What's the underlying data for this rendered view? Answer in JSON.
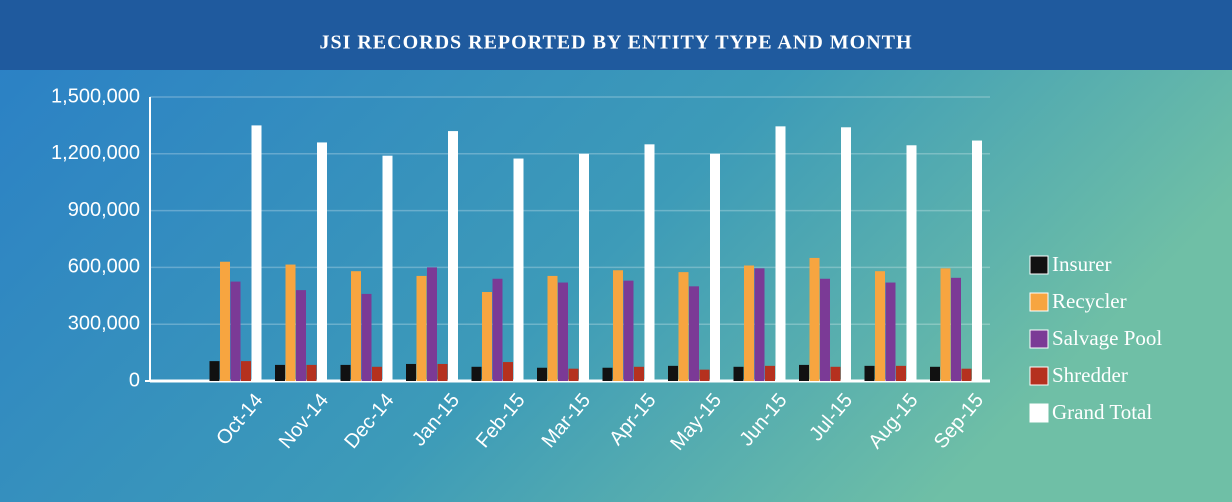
{
  "chart_data": {
    "type": "bar",
    "title": "JSI RECORDS REPORTED BY ENTITY TYPE AND MONTH",
    "categories": [
      "Oct-14",
      "Nov-14",
      "Dec-14",
      "Jan-15",
      "Feb-15",
      "Mar-15",
      "Apr-15",
      "May-15",
      "Jun-15",
      "Jul-15",
      "Aug-15",
      "Sep-15"
    ],
    "series": [
      {
        "name": "Insurer",
        "color": "#111111",
        "values": [
          105000,
          85000,
          85000,
          90000,
          75000,
          70000,
          70000,
          80000,
          75000,
          85000,
          80000,
          75000
        ]
      },
      {
        "name": "Recycler",
        "color": "#f7a540",
        "values": [
          630000,
          615000,
          580000,
          555000,
          470000,
          555000,
          585000,
          575000,
          610000,
          650000,
          580000,
          595000
        ]
      },
      {
        "name": "Salvage Pool",
        "color": "#7b3a96",
        "values": [
          525000,
          480000,
          460000,
          600000,
          540000,
          520000,
          530000,
          500000,
          595000,
          540000,
          520000,
          545000
        ]
      },
      {
        "name": "Shredder",
        "color": "#b5311f",
        "values": [
          105000,
          85000,
          75000,
          90000,
          100000,
          65000,
          75000,
          60000,
          80000,
          75000,
          80000,
          65000
        ]
      },
      {
        "name": "Grand Total",
        "color": "#ffffff",
        "values": [
          1350000,
          1260000,
          1190000,
          1320000,
          1175000,
          1200000,
          1250000,
          1200000,
          1345000,
          1340000,
          1245000,
          1270000
        ]
      }
    ],
    "ylim": [
      0,
      1500000
    ],
    "yticks": [
      0,
      {
        "value": 300000,
        "label": "300,000"
      },
      {
        "value": 600000,
        "label": "600,000"
      },
      {
        "value": 900000,
        "label": "900,000"
      },
      {
        "value": 1200000,
        "label": "1,200,000"
      },
      {
        "value": 1500000,
        "label": "1,500,000"
      }
    ],
    "grid": true,
    "legend": "right"
  }
}
